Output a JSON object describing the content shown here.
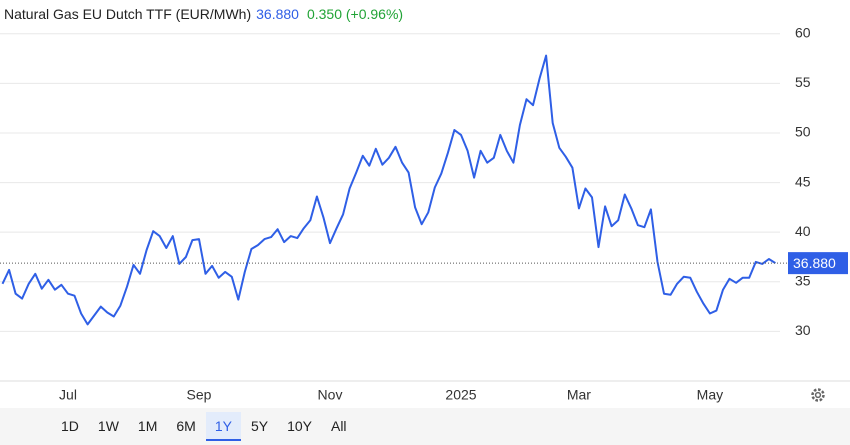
{
  "chart_data": {
    "type": "line",
    "title": "Natural Gas EU Dutch TTF (EUR/MWh)",
    "change": "0.350 (+0.96%)",
    "last": {
      "value": 36.88,
      "label": "36.880"
    },
    "color": "#2f5fe6",
    "categories": [
      null,
      null,
      null,
      null,
      null,
      null,
      null,
      null,
      null,
      null,
      "Jul",
      null,
      null,
      null,
      null,
      null,
      null,
      null,
      null,
      null,
      null,
      null,
      null,
      null,
      null,
      null,
      null,
      null,
      null,
      null,
      "Sep",
      null,
      null,
      null,
      null,
      null,
      null,
      null,
      null,
      null,
      null,
      null,
      null,
      null,
      null,
      null,
      null,
      null,
      null,
      null,
      "Nov",
      null,
      null,
      null,
      null,
      null,
      null,
      null,
      null,
      null,
      null,
      null,
      null,
      null,
      null,
      null,
      null,
      null,
      null,
      null,
      "2025",
      null,
      null,
      null,
      null,
      null,
      null,
      null,
      null,
      null,
      null,
      null,
      null,
      null,
      null,
      null,
      null,
      null,
      "Mar",
      null,
      null,
      null,
      null,
      null,
      null,
      null,
      null,
      null,
      null,
      null,
      null,
      null,
      null,
      null,
      null,
      null,
      null,
      null,
      "May",
      null,
      null,
      null,
      null,
      null,
      null,
      null,
      null,
      null,
      null
    ],
    "values": [
      34.8,
      36.2,
      33.8,
      33.3,
      34.8,
      35.8,
      34.3,
      35.2,
      34.2,
      34.7,
      33.8,
      33.6,
      31.8,
      30.7,
      31.6,
      32.5,
      31.9,
      31.5,
      32.6,
      34.5,
      36.7,
      35.8,
      38.2,
      40.1,
      39.6,
      38.4,
      39.6,
      36.8,
      37.5,
      39.2,
      39.3,
      35.8,
      36.6,
      35.4,
      36.0,
      35.5,
      33.2,
      36.0,
      38.3,
      38.7,
      39.3,
      39.5,
      40.3,
      39.0,
      39.6,
      39.4,
      40.4,
      41.2,
      43.6,
      41.5,
      38.9,
      40.4,
      41.8,
      44.4,
      46.0,
      47.7,
      46.7,
      48.4,
      46.8,
      47.5,
      48.6,
      47.0,
      46.0,
      42.5,
      40.8,
      42.0,
      44.5,
      45.9,
      48.0,
      50.3,
      49.8,
      48.2,
      45.5,
      48.2,
      47.0,
      47.5,
      49.8,
      48.2,
      47.0,
      50.8,
      53.4,
      52.8,
      55.5,
      57.8,
      51.0,
      48.5,
      47.6,
      46.5,
      42.4,
      44.4,
      43.5,
      38.5,
      42.6,
      40.6,
      41.2,
      43.8,
      42.4,
      40.7,
      40.5,
      42.3,
      37.0,
      33.8,
      33.7,
      34.8,
      35.5,
      35.4,
      34.0,
      32.8,
      31.8,
      32.1,
      34.2,
      35.3,
      34.9,
      35.4,
      35.4,
      37.0,
      36.8,
      37.3,
      36.88
    ],
    "ylim": [
      25,
      63.4
    ],
    "yticks": [
      30,
      35,
      40,
      45,
      50,
      55,
      60
    ],
    "grid": true
  },
  "controls": {
    "ranges": [
      "1D",
      "1W",
      "1M",
      "6M",
      "1Y",
      "5Y",
      "10Y",
      "All"
    ],
    "selected": "1Y"
  }
}
